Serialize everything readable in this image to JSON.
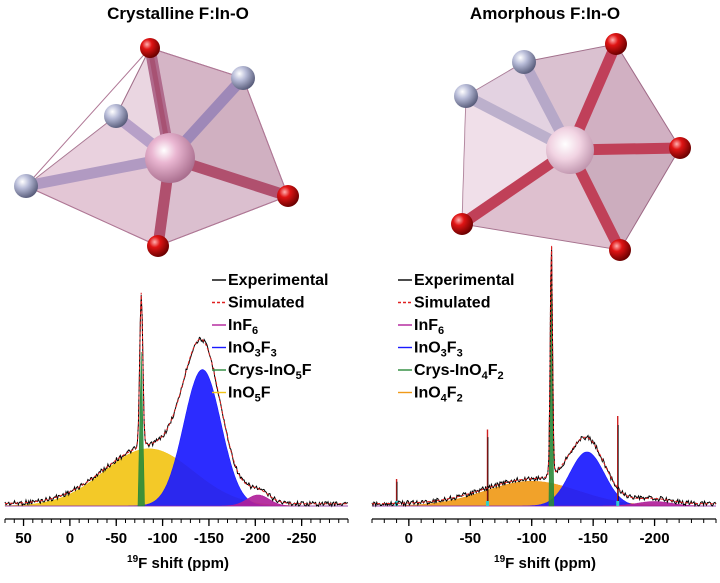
{
  "titles": {
    "left": "Crystalline F:In-O",
    "right": "Amorphous F:In-O"
  },
  "colors": {
    "oxygen": "#d40000",
    "fluorine": "#aab0cc",
    "indium": "#e6a6c8",
    "polyhedron": "#c07a9c",
    "experimental": "#000000",
    "simulated": "#e02020",
    "InF6": "#b0209a",
    "InO3F3": "#1a1aff",
    "Crys-InO5F": "#2a8a3a",
    "InO5F": "#f2c416",
    "Crys-InO4F2": "#2a8a3a",
    "InO4F2": "#f09a18"
  },
  "chart_data": [
    {
      "type": "area",
      "panel": "crystalline",
      "xlabel_sup": "19",
      "xlabel_main": "F shift (ppm)",
      "xlim": [
        70,
        -300
      ],
      "ylim": [
        0,
        1
      ],
      "ticks": [
        50,
        0,
        -50,
        -100,
        -150,
        -200,
        -250
      ],
      "tick_labels": [
        "50",
        "0",
        "-50",
        "-100",
        "-150",
        "-200",
        "-250"
      ],
      "legend": [
        {
          "label": "Experimental",
          "sub": "",
          "color_key": "experimental",
          "style": "solid"
        },
        {
          "label": "Simulated",
          "sub": "",
          "color_key": "simulated",
          "style": "dash"
        },
        {
          "label": "InF",
          "sub": "6",
          "color_key": "InF6",
          "style": "solid"
        },
        {
          "label": "InO",
          "sub": "3",
          "label2": "F",
          "sub2": "3",
          "color_key": "InO3F3",
          "style": "solid"
        },
        {
          "label": "Crys-InO",
          "sub": "5",
          "label2": "F",
          "sub2": "",
          "color_key": "Crys-InO5F",
          "style": "solid"
        },
        {
          "label": "InO",
          "sub": "5",
          "label2": "F",
          "sub2": "",
          "color_key": "InO5F",
          "style": "solid"
        }
      ],
      "series": [
        {
          "name": "InO5F",
          "color_key": "InO5F",
          "center": -85,
          "width": 48,
          "height": 0.26
        },
        {
          "name": "InO3F3",
          "color_key": "InO3F3",
          "center": -143,
          "width": 20,
          "height": 0.62
        },
        {
          "name": "InF6",
          "color_key": "InF6",
          "center": -203,
          "width": 12,
          "height": 0.05
        },
        {
          "name": "Crys-InO5F",
          "color_key": "Crys-InO5F",
          "center": -77,
          "width": 1.6,
          "height": 0.7
        }
      ]
    },
    {
      "type": "area",
      "panel": "amorphous",
      "xlabel_sup": "19",
      "xlabel_main": "F shift (ppm)",
      "xlim": [
        30,
        -250
      ],
      "ylim": [
        0,
        1
      ],
      "ticks": [
        0,
        -50,
        -100,
        -150,
        -200
      ],
      "tick_labels": [
        "0",
        "-50",
        "-100",
        "-150",
        "-200"
      ],
      "legend": [
        {
          "label": "Experimental",
          "sub": "",
          "color_key": "experimental",
          "style": "solid"
        },
        {
          "label": "Simulated",
          "sub": "",
          "color_key": "simulated",
          "style": "dash"
        },
        {
          "label": "InF",
          "sub": "6",
          "color_key": "InF6",
          "style": "solid"
        },
        {
          "label": "InO",
          "sub": "3",
          "label2": "F",
          "sub2": "3",
          "color_key": "InO3F3",
          "style": "solid"
        },
        {
          "label": "Crys-InO",
          "sub": "4",
          "label2": "F",
          "sub2": "2",
          "color_key": "Crys-InO4F2",
          "style": "solid"
        },
        {
          "label": "InO",
          "sub": "4",
          "label2": "F",
          "sub2": "2",
          "color_key": "InO4F2",
          "style": "solid"
        }
      ],
      "series": [
        {
          "name": "InO4F2",
          "color_key": "InO4F2",
          "center": -100,
          "width": 38,
          "height": 0.11
        },
        {
          "name": "InO3F3",
          "color_key": "InO3F3",
          "center": -145,
          "width": 14,
          "height": 0.24
        },
        {
          "name": "InF6",
          "color_key": "InF6",
          "center": -200,
          "width": 14,
          "height": 0.02
        },
        {
          "name": "Crys-InO4F2",
          "color_key": "Crys-InO4F2",
          "center": -116,
          "width": 0.9,
          "height": 1.05
        }
      ],
      "sharp_peaks": [
        {
          "x": 10,
          "height": 0.12
        },
        {
          "x": -64,
          "height": 0.34
        },
        {
          "x": -170,
          "height": 0.4
        }
      ]
    }
  ]
}
